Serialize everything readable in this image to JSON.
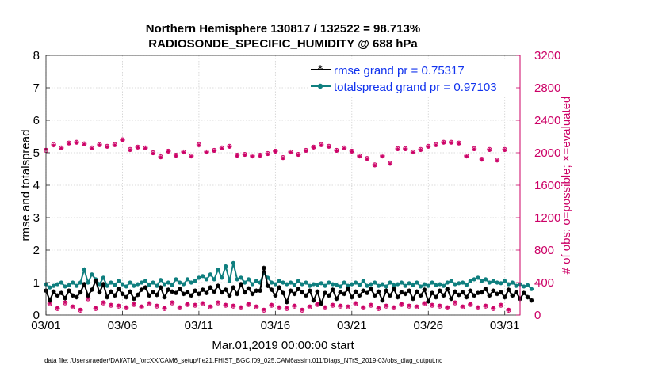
{
  "chart_data": {
    "type": "line",
    "title_line1": "Northern Hemisphere 130817 / 132522 = 98.713%",
    "title_line2": "RADIOSONDE_SPECIFIC_HUMIDITY @ 688 hPa",
    "xlabel": "Mar.01,2019 00:00:00 start",
    "ylabel_left": "rmse and totalspread",
    "ylabel_right": "# of obs: o=possible; ×=evaluated",
    "footnote": "data file: /Users/raeder/DAI/ATM_forcXX/CAM6_setup/f.e21.FHIST_BGC.f09_025.CAM6assim.011/Diags_NTrS_2019-03/obs_diag_output.nc",
    "xlim": [
      0,
      31
    ],
    "x_ticks": [
      0,
      5,
      10,
      15,
      20,
      25,
      30
    ],
    "x_tick_labels": [
      "03/01",
      "03/06",
      "03/11",
      "03/16",
      "03/21",
      "03/26",
      "03/31"
    ],
    "ylim_left": [
      0,
      8
    ],
    "y_ticks_left": [
      "0",
      "1",
      "2",
      "3",
      "4",
      "5",
      "6",
      "7",
      "8"
    ],
    "ylim_right": [
      0,
      3200
    ],
    "y_ticks_right": [
      "0",
      "400",
      "800",
      "1200",
      "1600",
      "2000",
      "2400",
      "2800",
      "3200"
    ],
    "x_step_days": 0.25,
    "colors": {
      "rmse": "#000000",
      "spread": "#0f7f7f",
      "obs": "#cc0066",
      "right_axis": "#cc0066",
      "legend_text": "#1133ee"
    },
    "series": [
      {
        "name": "rmse grand pr = 0.75317",
        "axis": "left",
        "values": [
          0.75,
          0.45,
          0.72,
          0.6,
          0.68,
          0.52,
          0.75,
          0.6,
          0.55,
          0.7,
          0.95,
          0.6,
          0.78,
          1.05,
          0.7,
          0.95,
          0.55,
          0.72,
          0.6,
          0.8,
          0.65,
          0.55,
          0.72,
          0.5,
          0.62,
          0.78,
          0.85,
          0.6,
          0.7,
          0.62,
          0.85,
          0.55,
          0.78,
          0.72,
          0.68,
          0.8,
          0.65,
          0.7,
          0.6,
          0.75,
          0.65,
          0.78,
          0.68,
          0.85,
          0.72,
          0.9,
          0.7,
          0.78,
          0.6,
          0.85,
          0.65,
          0.95,
          0.7,
          0.82,
          0.65,
          0.75,
          0.75,
          1.45,
          0.9,
          0.78,
          0.6,
          0.85,
          0.68,
          0.4,
          0.75,
          0.65,
          0.8,
          0.7,
          0.6,
          0.75,
          0.45,
          0.72,
          0.35,
          0.68,
          0.6,
          0.78,
          0.5,
          0.7,
          0.65,
          0.8,
          0.55,
          0.72,
          0.6,
          0.75,
          0.68,
          0.8,
          0.6,
          0.72,
          0.45,
          0.75,
          0.6,
          0.8,
          0.55,
          0.7,
          0.65,
          0.75,
          0.5,
          0.72,
          0.6,
          0.78,
          0.42,
          0.68,
          0.55,
          0.75,
          0.6,
          0.8,
          0.5,
          0.72,
          0.62,
          0.7,
          0.55,
          0.75,
          0.6,
          0.68,
          0.7,
          0.8,
          0.6,
          0.75,
          0.65,
          0.7,
          0.55,
          0.78,
          0.6,
          0.7,
          0.5,
          0.68,
          0.55,
          0.45
        ]
      },
      {
        "name": "totalspread grand pr = 0.97103",
        "axis": "left",
        "values": [
          0.95,
          0.85,
          0.9,
          0.95,
          1.0,
          0.88,
          0.92,
          1.0,
          0.9,
          1.0,
          1.4,
          1.0,
          1.25,
          1.1,
          0.95,
          1.15,
          0.9,
          1.0,
          0.92,
          1.05,
          0.95,
          0.88,
          1.0,
          0.9,
          0.95,
          1.0,
          1.05,
          0.92,
          1.0,
          0.9,
          1.08,
          0.95,
          1.0,
          0.92,
          1.1,
          1.0,
          0.95,
          1.1,
          1.0,
          1.05,
          1.15,
          1.2,
          1.1,
          1.25,
          1.1,
          1.4,
          1.15,
          1.5,
          1.05,
          1.6,
          1.1,
          1.15,
          1.0,
          1.1,
          0.95,
          1.05,
          1.0,
          1.3,
          1.15,
          1.0,
          0.95,
          1.05,
          1.0,
          0.95,
          1.0,
          0.92,
          1.05,
          0.95,
          1.0,
          0.9,
          0.95,
          0.92,
          0.98,
          0.9,
          1.0,
          0.95,
          0.92,
          0.88,
          1.0,
          0.9,
          0.95,
          1.0,
          0.92,
          1.05,
          0.9,
          0.95,
          1.0,
          0.9,
          0.95,
          0.88,
          1.0,
          0.92,
          0.95,
          1.0,
          0.9,
          0.98,
          0.92,
          1.0,
          0.88,
          0.95,
          0.9,
          1.0,
          0.92,
          0.95,
          0.9,
          1.0,
          1.05,
          0.95,
          0.98,
          1.0,
          0.92,
          1.05,
          1.1,
          1.15,
          1.05,
          1.1,
          1.0,
          1.05,
          1.0,
          0.98,
          1.05,
          0.95,
          1.0,
          0.9,
          0.95,
          0.88,
          0.92,
          0.8
        ]
      },
      {
        "name": "obs possible",
        "axis": "right",
        "values": [
          2030,
          140,
          2100,
          80,
          2060,
          150,
          2120,
          100,
          2130,
          60,
          2110,
          200,
          2060,
          80,
          2100,
          150,
          2080,
          120,
          2100,
          110,
          2160,
          90,
          2040,
          130,
          2070,
          100,
          2060,
          140,
          2000,
          110,
          1950,
          80,
          2020,
          150,
          1970,
          90,
          2010,
          130,
          1960,
          120,
          2100,
          140,
          2010,
          100,
          2030,
          150,
          2060,
          120,
          2080,
          110,
          1970,
          90,
          1980,
          130,
          1960,
          100,
          1970,
          60,
          1990,
          120,
          2020,
          90,
          1940,
          80,
          2010,
          110,
          1980,
          60,
          2030,
          100,
          2070,
          130,
          2100,
          90,
          2080,
          120,
          2030,
          110,
          2060,
          100,
          2020,
          140,
          1960,
          90,
          1930,
          120,
          1850,
          80,
          1960,
          110,
          1870,
          90,
          2050,
          130,
          2050,
          110,
          2010,
          100,
          2040,
          140,
          2080,
          120,
          2100,
          110,
          2130,
          90,
          2130,
          150,
          2120,
          100,
          1960,
          130,
          2050,
          90,
          1920,
          110,
          2040,
          80,
          1910,
          120,
          2040,
          60
        ]
      },
      {
        "name": "obs evaluated",
        "axis": "right",
        "values": [
          2040,
          145,
          2090,
          85,
          2055,
          155,
          2115,
          105,
          2125,
          65,
          2105,
          205,
          2055,
          85,
          2095,
          155,
          2075,
          125,
          2095,
          115,
          2155,
          95,
          2035,
          135,
          2065,
          105,
          2055,
          145,
          1995,
          115,
          1945,
          85,
          2015,
          155,
          1965,
          95,
          2005,
          135,
          1955,
          125,
          2095,
          145,
          2005,
          105,
          2025,
          155,
          2055,
          125,
          2075,
          115,
          1965,
          95,
          1975,
          135,
          1955,
          105,
          1965,
          65,
          1985,
          125,
          2015,
          95,
          1935,
          85,
          2005,
          115,
          1975,
          65,
          2025,
          105,
          2065,
          135,
          2095,
          95,
          2075,
          125,
          2025,
          115,
          2055,
          105,
          2015,
          145,
          1955,
          95,
          1925,
          125,
          1845,
          85,
          1955,
          115,
          1865,
          95,
          2045,
          135,
          2045,
          115,
          2005,
          105,
          2035,
          145,
          2075,
          125,
          2095,
          115,
          2125,
          95,
          2125,
          155,
          2115,
          105,
          1955,
          135,
          2045,
          95,
          1915,
          115,
          2035,
          85,
          1905,
          125,
          2035,
          65
        ]
      }
    ]
  }
}
